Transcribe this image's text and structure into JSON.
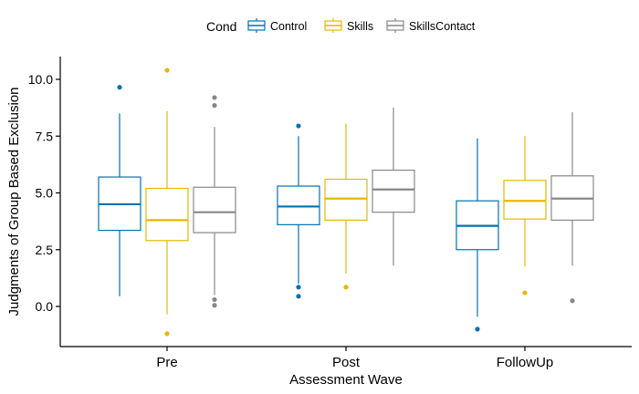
{
  "chart_data": {
    "type": "boxplot",
    "title": "",
    "xlabel": "Assessment Wave",
    "ylabel": "Judgments of Group Based Exclusion",
    "categories": [
      "Pre",
      "Post",
      "FollowUp"
    ],
    "ylim": [
      -1.7,
      11.2
    ],
    "yticks": [
      "0.0",
      "2.5",
      "5.0",
      "7.5",
      "10.0"
    ],
    "ytick_values": [
      0,
      2.5,
      5,
      7.5,
      10
    ],
    "grid": false,
    "legend": {
      "title": "Cond",
      "placement": "top",
      "entries": [
        "Control",
        "Skills",
        "SkillsContact"
      ]
    },
    "series": [
      {
        "name": "Control",
        "color": "#0072B2",
        "boxes": [
          {
            "min": 0.45,
            "q1": 3.35,
            "median": 4.5,
            "q3": 5.7,
            "max": 8.5,
            "outliers": [
              9.65
            ]
          },
          {
            "min": 1.0,
            "q1": 3.6,
            "median": 4.4,
            "q3": 5.3,
            "max": 7.5,
            "outliers": [
              7.95,
              0.85,
              0.45
            ]
          },
          {
            "min": -0.45,
            "q1": 2.5,
            "median": 3.55,
            "q3": 4.65,
            "max": 7.4,
            "outliers": [
              -1.0
            ]
          }
        ]
      },
      {
        "name": "Skills",
        "color": "#E7B800",
        "boxes": [
          {
            "min": -0.35,
            "q1": 2.9,
            "median": 3.8,
            "q3": 5.2,
            "max": 8.6,
            "outliers": [
              10.4,
              -1.2
            ]
          },
          {
            "min": 1.45,
            "q1": 3.8,
            "median": 4.75,
            "q3": 5.6,
            "max": 8.05,
            "outliers": [
              0.85
            ]
          },
          {
            "min": 1.75,
            "q1": 3.85,
            "median": 4.65,
            "q3": 5.55,
            "max": 7.5,
            "outliers": [
              0.6
            ]
          }
        ]
      },
      {
        "name": "SkillsContact",
        "color": "#888888",
        "boxes": [
          {
            "min": 0.5,
            "q1": 3.25,
            "median": 4.15,
            "q3": 5.25,
            "max": 7.9,
            "outliers": [
              9.2,
              8.85,
              0.3,
              0.05
            ]
          },
          {
            "min": 1.8,
            "q1": 4.15,
            "median": 5.15,
            "q3": 6.0,
            "max": 8.75,
            "outliers": []
          },
          {
            "min": 1.8,
            "q1": 3.8,
            "median": 4.75,
            "q3": 5.75,
            "max": 8.55,
            "outliers": [
              0.25
            ]
          }
        ]
      }
    ]
  }
}
